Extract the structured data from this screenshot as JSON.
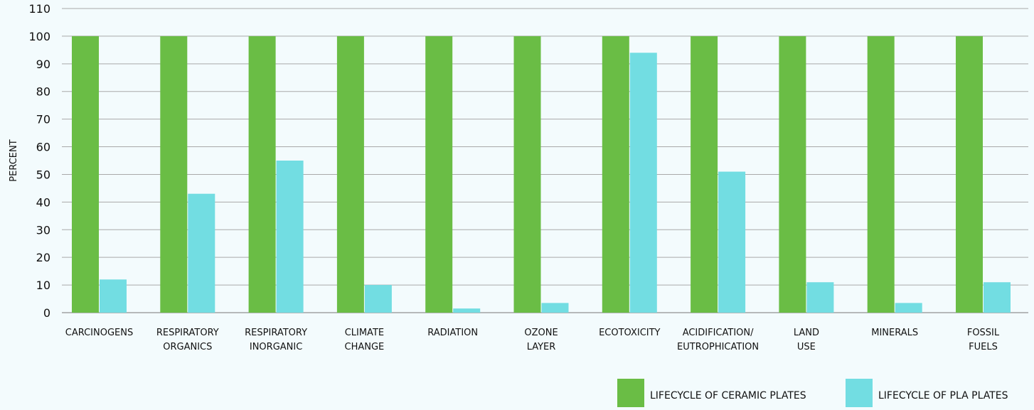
{
  "chart_data": {
    "type": "bar",
    "ylabel": "PERCENT",
    "xlabel": "",
    "ylim": [
      0,
      110
    ],
    "yticks": [
      0,
      10,
      20,
      30,
      40,
      50,
      60,
      70,
      80,
      90,
      100,
      110
    ],
    "grid": true,
    "legend_position": "bottom-right",
    "categories": [
      [
        "CARCINOGENS"
      ],
      [
        "RESPIRATORY",
        "ORGANICS"
      ],
      [
        "RESPIRATORY",
        "INORGANIC"
      ],
      [
        "CLIMATE",
        "CHANGE"
      ],
      [
        "RADIATION"
      ],
      [
        "OZONE",
        "LAYER"
      ],
      [
        "ECOTOXICITY"
      ],
      [
        "ACIDIFICATION/",
        "EUTROPHICATION"
      ],
      [
        "LAND",
        "USE"
      ],
      [
        "MINERALS"
      ],
      [
        "FOSSIL",
        "FUELS"
      ]
    ],
    "series": [
      {
        "name": "LIFECYCLE OF CERAMIC PLATES",
        "color": "#6abd45",
        "values": [
          100,
          100,
          100,
          100,
          100,
          100,
          100,
          100,
          100,
          100,
          100
        ]
      },
      {
        "name": "LIFECYCLE OF PLA PLATES",
        "color": "#72dde2",
        "values": [
          12,
          43,
          55,
          10,
          1.5,
          3.5,
          94,
          51,
          11,
          3.5,
          11
        ]
      }
    ]
  }
}
